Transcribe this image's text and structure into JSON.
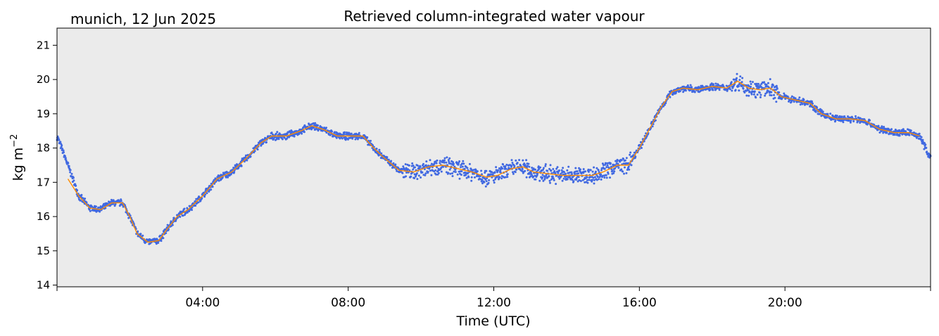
{
  "location_date": "munich, 12 Jun 2025",
  "chart_data": {
    "type": "scatter",
    "title": "Retrieved column-integrated water vapour",
    "xlabel": "Time (UTC)",
    "ylabel_base": "kg m",
    "ylabel_exp": "−2",
    "xlim": [
      0,
      24
    ],
    "ylim": [
      13.95,
      21.5
    ],
    "x_ticks": [
      {
        "value": 0,
        "label": ""
      },
      {
        "value": 4,
        "label": "04:00"
      },
      {
        "value": 8,
        "label": "08:00"
      },
      {
        "value": 12,
        "label": "12:00"
      },
      {
        "value": 16,
        "label": "16:00"
      },
      {
        "value": 20,
        "label": "20:00"
      },
      {
        "value": 24,
        "label": ""
      }
    ],
    "y_ticks": [
      14,
      15,
      16,
      17,
      18,
      19,
      20,
      21
    ],
    "background_color": "#ebebeb",
    "series": [
      {
        "kind": "scatter",
        "color": "#4169e1",
        "note_points": "raw retrievals scattered around the smoothed curve",
        "x": [
          0.0,
          0.3,
          0.6,
          0.9,
          1.2,
          1.5,
          1.8,
          2.0,
          2.2,
          2.5,
          2.8,
          3.0,
          3.3,
          3.6,
          4.0,
          4.4,
          4.8,
          5.2,
          5.6,
          5.9,
          6.3,
          6.7,
          7.0,
          7.3,
          7.7,
          8.0,
          8.4,
          8.7,
          9.0,
          9.4,
          9.8,
          10.2,
          10.6,
          11.0,
          11.4,
          11.8,
          12.1,
          12.5,
          12.8,
          13.1,
          13.5,
          13.9,
          14.3,
          14.7,
          15.0,
          15.4,
          15.7,
          16.0,
          16.3,
          16.6,
          16.9,
          17.2,
          17.6,
          18.0,
          18.4,
          18.7,
          19.0,
          19.3,
          19.6,
          19.9,
          20.3,
          20.7,
          21.0,
          21.4,
          21.8,
          22.2,
          22.6,
          23.0,
          23.4,
          23.7,
          24.0
        ],
        "y": [
          18.35,
          17.5,
          16.6,
          16.25,
          16.2,
          16.4,
          16.4,
          16.0,
          15.5,
          15.25,
          15.3,
          15.6,
          16.0,
          16.2,
          16.6,
          17.1,
          17.3,
          17.7,
          18.15,
          18.35,
          18.35,
          18.5,
          18.65,
          18.55,
          18.35,
          18.35,
          18.35,
          18.0,
          17.7,
          17.35,
          17.3,
          17.45,
          17.5,
          17.4,
          17.3,
          17.15,
          17.2,
          17.4,
          17.45,
          17.3,
          17.25,
          17.2,
          17.2,
          17.2,
          17.3,
          17.5,
          17.5,
          18.0,
          18.6,
          19.2,
          19.65,
          19.75,
          19.7,
          19.8,
          19.75,
          19.95,
          19.75,
          19.7,
          19.75,
          19.5,
          19.4,
          19.3,
          19.0,
          18.85,
          18.85,
          18.8,
          18.55,
          18.45,
          18.45,
          18.35,
          17.7
        ]
      },
      {
        "kind": "line",
        "color": "#ff8c00",
        "x": [
          0.3,
          0.6,
          0.9,
          1.2,
          1.5,
          1.8,
          2.0,
          2.2,
          2.5,
          2.8,
          3.0,
          3.3,
          3.6,
          4.0,
          4.4,
          4.8,
          5.2,
          5.6,
          5.9,
          6.3,
          6.7,
          7.0,
          7.3,
          7.7,
          8.0,
          8.4,
          8.7,
          9.0,
          9.4,
          9.8,
          10.2,
          10.6,
          11.0,
          11.4,
          11.8,
          12.1,
          12.5,
          12.8,
          13.1,
          13.5,
          13.9,
          14.3,
          14.7,
          15.0,
          15.4,
          15.7,
          16.0,
          16.3,
          16.6,
          16.9,
          17.2,
          17.6,
          18.0,
          18.4,
          18.7,
          19.0,
          19.3,
          19.6,
          19.9,
          20.3,
          20.7,
          21.0,
          21.4,
          21.8,
          22.2,
          22.6,
          23.0,
          23.4,
          23.7
        ],
        "y": [
          17.1,
          16.6,
          16.25,
          16.2,
          16.4,
          16.4,
          16.0,
          15.5,
          15.25,
          15.3,
          15.6,
          16.0,
          16.2,
          16.6,
          17.1,
          17.3,
          17.7,
          18.15,
          18.35,
          18.35,
          18.5,
          18.65,
          18.55,
          18.35,
          18.35,
          18.35,
          18.0,
          17.7,
          17.35,
          17.3,
          17.45,
          17.5,
          17.4,
          17.3,
          17.15,
          17.2,
          17.4,
          17.45,
          17.3,
          17.25,
          17.2,
          17.2,
          17.2,
          17.3,
          17.5,
          17.5,
          18.0,
          18.6,
          19.2,
          19.65,
          19.75,
          19.7,
          19.8,
          19.75,
          19.95,
          19.75,
          19.7,
          19.75,
          19.5,
          19.4,
          19.3,
          19.0,
          18.85,
          18.85,
          18.8,
          18.55,
          18.45,
          18.45,
          18.35
        ]
      }
    ]
  }
}
